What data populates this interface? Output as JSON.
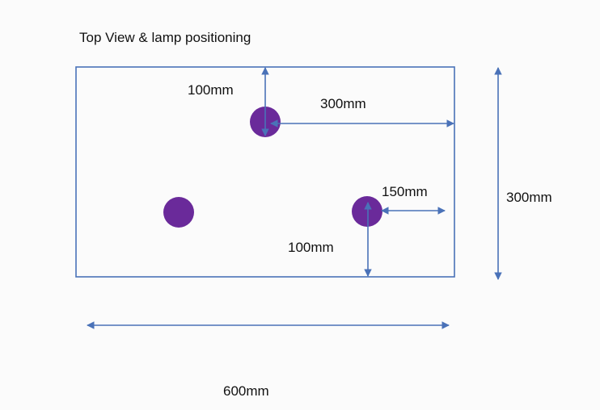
{
  "title": "Top View & lamp positioning",
  "labels": {
    "top_lamp_to_top_edge": "100mm",
    "top_lamp_to_right_edge": "300mm",
    "right_lamp_to_right_edge": "150mm",
    "right_lamp_to_bottom_edge": "100mm",
    "overall_height": "300mm",
    "overall_width": "600mm"
  },
  "colors": {
    "outline": "#4a72b8",
    "arrow": "#4a72b8",
    "lamp": "#6a2a9a",
    "text": "#111111"
  },
  "lamps": [
    {
      "name": "top-center-lamp"
    },
    {
      "name": "left-lamp"
    },
    {
      "name": "right-lamp"
    }
  ]
}
